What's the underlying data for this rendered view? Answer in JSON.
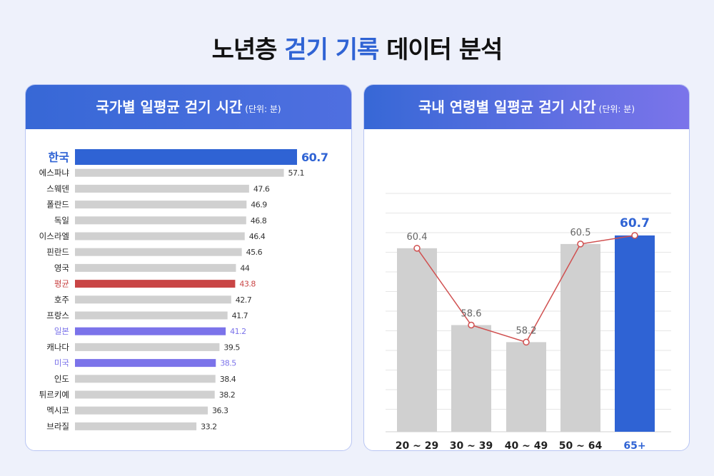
{
  "title": {
    "part1": "노년층 ",
    "accent": "걷기 기록",
    "part2": " 데이터 분석"
  },
  "left_card": {
    "title": "국가별 일평균 걷기 시간",
    "unit": "(단위: 분)"
  },
  "right_card": {
    "title": "국내 연령별 일평균 걷기 시간",
    "unit": "(단위: 분)"
  },
  "colors": {
    "highlight": "#2f63d4",
    "average": "#c94545",
    "compare": "#7b73ea",
    "default_bar": "#d0d0d0",
    "line": "#d05050"
  },
  "chart_data": [
    {
      "type": "bar",
      "orientation": "horizontal",
      "title": "국가별 일평균 걷기 시간",
      "categories": [
        "한국",
        "에스파냐",
        "스웨덴",
        "폴란드",
        "독일",
        "이스라엘",
        "핀란드",
        "영국",
        "평균",
        "호주",
        "프랑스",
        "일본",
        "캐나다",
        "미국",
        "인도",
        "튀르키예",
        "멕시코",
        "브라질"
      ],
      "values": [
        60.7,
        57.1,
        47.6,
        46.9,
        46.8,
        46.4,
        45.6,
        44,
        43.8,
        42.7,
        41.7,
        41.2,
        39.5,
        38.5,
        38.4,
        38.2,
        36.3,
        33.2
      ],
      "value_labels": [
        "60.7",
        "57.1",
        "47.6",
        "46.9",
        "46.8",
        "46.4",
        "45.6",
        "44",
        "43.8",
        "42.7",
        "41.7",
        "41.2",
        "39.5",
        "38.5",
        "38.4",
        "38.2",
        "36.3",
        "33.2"
      ],
      "highlights": {
        "한국": "highlight",
        "평균": "average",
        "일본": "compare",
        "미국": "compare"
      },
      "xlim": [
        0,
        60.7
      ]
    },
    {
      "type": "bar",
      "title": "국내 연령별 일평균 걷기 시간",
      "categories": [
        "20 ~ 29",
        "30 ~ 39",
        "40 ~ 49",
        "50 ~ 64",
        "65+"
      ],
      "values": [
        60.4,
        58.6,
        58.2,
        60.5,
        60.7
      ],
      "value_labels": [
        "60.4",
        "58.6",
        "58.2",
        "60.5",
        "60.7"
      ],
      "overlay": "line",
      "highlights": {
        "65+": "highlight"
      },
      "ylim": [
        56.1,
        61.1
      ],
      "grid": true
    }
  ]
}
